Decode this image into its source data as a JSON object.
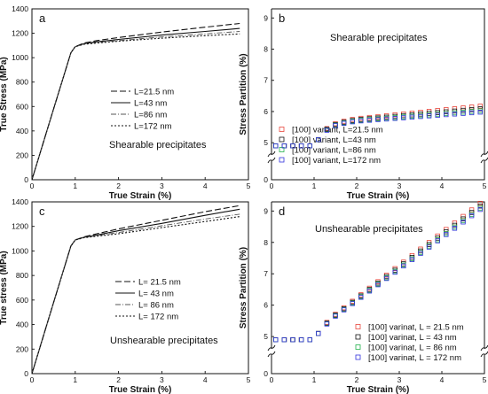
{
  "chart_data": [
    {
      "type": "line",
      "letter": "a",
      "annotation": "Shearable precipitates",
      "xlabel": "True Strain (%)",
      "ylabel": "True Stress (MPa)",
      "xlim": [
        0,
        5
      ],
      "ylim": [
        0,
        1400
      ],
      "xticks": [
        0,
        1,
        2,
        3,
        4,
        5
      ],
      "yticks": [
        0,
        200,
        400,
        600,
        800,
        1000,
        1200,
        1400
      ],
      "legend_position": "center-right",
      "series": [
        {
          "name": "L=21.5 nm",
          "dash": "7,3",
          "width": 1.1,
          "color": "#111111",
          "x": [
            0,
            0.5,
            0.9,
            1.0,
            1.2,
            1.5,
            2,
            3,
            4,
            4.8
          ],
          "y": [
            0,
            580,
            1040,
            1090,
            1120,
            1140,
            1165,
            1210,
            1250,
            1280
          ]
        },
        {
          "name": "L=43 nm",
          "dash": "",
          "width": 1.1,
          "color": "#111111",
          "x": [
            0,
            0.5,
            0.9,
            1.0,
            1.2,
            1.5,
            2,
            3,
            4,
            4.8
          ],
          "y": [
            0,
            580,
            1040,
            1090,
            1115,
            1130,
            1150,
            1185,
            1215,
            1240
          ]
        },
        {
          "name": "L=86 nm",
          "dash": "6,2,1,2",
          "width": 0.9,
          "color": "#555555",
          "x": [
            0,
            0.5,
            0.9,
            1.0,
            1.2,
            1.5,
            2,
            3,
            4,
            4.8
          ],
          "y": [
            0,
            580,
            1040,
            1090,
            1112,
            1125,
            1140,
            1170,
            1195,
            1215
          ]
        },
        {
          "name": "L=172 nm",
          "dash": "2,2",
          "width": 1.1,
          "color": "#111111",
          "x": [
            0,
            0.5,
            0.9,
            1.0,
            1.2,
            1.5,
            2,
            3,
            4,
            4.8
          ],
          "y": [
            0,
            580,
            1040,
            1090,
            1110,
            1120,
            1135,
            1160,
            1180,
            1195
          ]
        }
      ]
    },
    {
      "type": "scatter",
      "letter": "b",
      "annotation": "Shearable precipitates",
      "xlabel": "True Strain (%)",
      "ylabel": "Stress Partition (%)",
      "xlim": [
        0,
        5
      ],
      "ylim": [
        5,
        9
      ],
      "axis_break": true,
      "xticks": [
        0,
        1,
        2,
        3,
        4,
        5
      ],
      "yticks": [
        0,
        5,
        6,
        7,
        8,
        9
      ],
      "legend_position": "bottom-center",
      "series": [
        {
          "name": "[100] variant, L=21.5 nm",
          "color": "#e8463c"
        },
        {
          "name": "[100] variant, L=43 nm",
          "color": "#111111"
        },
        {
          "name": "[100] variant, L=86 nm",
          "color": "#22b14c"
        },
        {
          "name": "[100] variant, L=172 nm",
          "color": "#3333dd",
          "x": [
            0.1,
            0.3,
            0.5,
            0.7,
            0.9,
            1.1,
            1.3,
            1.5,
            1.7,
            1.9,
            2.1,
            2.3,
            2.5,
            2.7,
            2.9,
            3.1,
            3.3,
            3.5,
            3.7,
            3.9,
            4.1,
            4.3,
            4.5,
            4.7,
            4.9
          ],
          "y": [
            4.9,
            4.9,
            4.9,
            4.9,
            4.9,
            5.1,
            5.4,
            5.55,
            5.62,
            5.67,
            5.7,
            5.72,
            5.74,
            5.76,
            5.78,
            5.8,
            5.82,
            5.84,
            5.86,
            5.88,
            5.9,
            5.92,
            5.94,
            5.96,
            5.98
          ]
        }
      ]
    },
    {
      "type": "line",
      "letter": "c",
      "annotation": "Unshearable precipitates",
      "xlabel": "True Strain (%)",
      "ylabel": "True stress (MPa)",
      "xlim": [
        0,
        5
      ],
      "ylim": [
        0,
        1400
      ],
      "xticks": [
        0,
        1,
        2,
        3,
        4,
        5
      ],
      "yticks": [
        0,
        200,
        400,
        600,
        800,
        1000,
        1200,
        1400
      ],
      "legend_position": "center-right",
      "series": [
        {
          "name": "L= 21.5 nm",
          "dash": "7,3",
          "width": 1.1,
          "color": "#111111",
          "x": [
            0,
            0.5,
            0.9,
            1.0,
            1.2,
            1.5,
            2,
            3,
            4,
            4.8
          ],
          "y": [
            0,
            580,
            1040,
            1090,
            1115,
            1140,
            1180,
            1250,
            1320,
            1370
          ]
        },
        {
          "name": "L= 43 nm",
          "dash": "",
          "width": 1.1,
          "color": "#111111",
          "x": [
            0,
            0.5,
            0.9,
            1.0,
            1.2,
            1.5,
            2,
            3,
            4,
            4.8
          ],
          "y": [
            0,
            580,
            1040,
            1090,
            1112,
            1130,
            1165,
            1225,
            1290,
            1340
          ]
        },
        {
          "name": "L= 86 nm",
          "dash": "6,2,1,2",
          "width": 0.9,
          "color": "#555555",
          "x": [
            0,
            0.5,
            0.9,
            1.0,
            1.2,
            1.5,
            2,
            3,
            4,
            4.8
          ],
          "y": [
            0,
            580,
            1040,
            1090,
            1110,
            1125,
            1150,
            1205,
            1260,
            1300
          ]
        },
        {
          "name": "L= 172 nm",
          "dash": "2,2",
          "width": 1.1,
          "color": "#111111",
          "x": [
            0,
            0.5,
            0.9,
            1.0,
            1.2,
            1.5,
            2,
            3,
            4,
            4.8
          ],
          "y": [
            0,
            580,
            1040,
            1090,
            1108,
            1120,
            1140,
            1190,
            1240,
            1280
          ]
        }
      ]
    },
    {
      "type": "scatter",
      "letter": "d",
      "annotation": "Unshearable precipitates",
      "xlabel": "True Strain (%)",
      "ylabel": "Stress Partition (%)",
      "xlim": [
        0,
        5
      ],
      "ylim": [
        5,
        9
      ],
      "axis_break": true,
      "xticks": [
        0,
        1,
        2,
        3,
        4,
        5
      ],
      "yticks": [
        0,
        5,
        6,
        7,
        8,
        9
      ],
      "legend_position": "bottom-right",
      "series": [
        {
          "name": "[100] varinat, L = 21.5 nm",
          "color": "#e8463c"
        },
        {
          "name": "[100] varinat, L = 43 nm",
          "color": "#111111"
        },
        {
          "name": "[100] varinat, L = 86 nm",
          "color": "#22b14c"
        },
        {
          "name": "[100] varinat, L = 172 nm",
          "color": "#3333dd",
          "x": [
            0.1,
            0.3,
            0.5,
            0.7,
            0.9,
            1.1,
            1.3,
            1.5,
            1.7,
            1.9,
            2.1,
            2.3,
            2.5,
            2.7,
            2.9,
            3.1,
            3.3,
            3.5,
            3.7,
            3.9,
            4.1,
            4.3,
            4.5,
            4.7,
            4.9
          ],
          "y": [
            4.9,
            4.9,
            4.9,
            4.9,
            4.9,
            5.1,
            5.4,
            5.65,
            5.85,
            6.05,
            6.25,
            6.45,
            6.65,
            6.85,
            7.05,
            7.25,
            7.45,
            7.65,
            7.85,
            8.05,
            8.25,
            8.45,
            8.65,
            8.85,
            9.05
          ]
        }
      ]
    }
  ]
}
